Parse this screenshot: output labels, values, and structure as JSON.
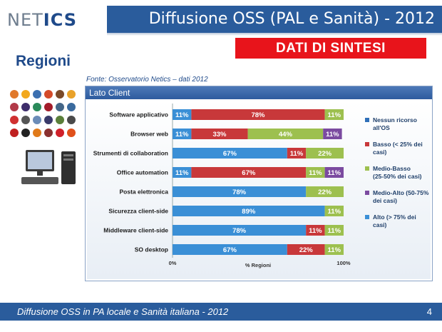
{
  "header": {
    "logo_text": "NETICS",
    "title": "Diffusione OSS (PAL e Sanità) - 2012",
    "badge": "DATI DI SINTESI"
  },
  "section_title": "Regioni",
  "source": "Fonte: Osservatorio Netics – dati 2012",
  "panel_title": "Lato Client",
  "footer": {
    "text": "Diffusione OSS in PA locale e Sanità italiana - 2012",
    "page": "4"
  },
  "chart_data": {
    "type": "bar",
    "orientation": "horizontal",
    "stacked": "100%",
    "xlabel": "% Regioni",
    "x_ticks": [
      "0%",
      "100%"
    ],
    "xlim": [
      0,
      100
    ],
    "legend_position": "right",
    "categories": [
      "Software applicativo",
      "Browser web",
      "Strumenti di collaboration",
      "Office automation",
      "Posta elettronica",
      "Sicurezza client-side",
      "Middleware client-side",
      "SO desktop"
    ],
    "series": [
      {
        "name": "Alto (> 75% dei casi)",
        "color": "#3a8fd6",
        "values": [
          11,
          11,
          67,
          11,
          78,
          89,
          78,
          67
        ]
      },
      {
        "name": "Basso (< 25% dei casi)",
        "color": "#c8383a",
        "values": [
          78,
          33,
          11,
          67,
          0,
          0,
          11,
          22
        ]
      },
      {
        "name": "Medio-Basso (25-50% dei casi)",
        "color": "#9dc04f",
        "values": [
          11,
          44,
          22,
          11,
          22,
          11,
          11,
          11
        ]
      },
      {
        "name": "Medio-Alto (50-75% dei casi)",
        "color": "#7b4aa0",
        "values": [
          0,
          11,
          0,
          11,
          0,
          0,
          0,
          0
        ]
      },
      {
        "name": "Nessun ricorso all'OS",
        "color": "#2f6fb8",
        "values": [
          0,
          0,
          0,
          0,
          0,
          0,
          0,
          0
        ]
      }
    ],
    "legend_order": [
      4,
      1,
      2,
      3,
      0
    ]
  }
}
